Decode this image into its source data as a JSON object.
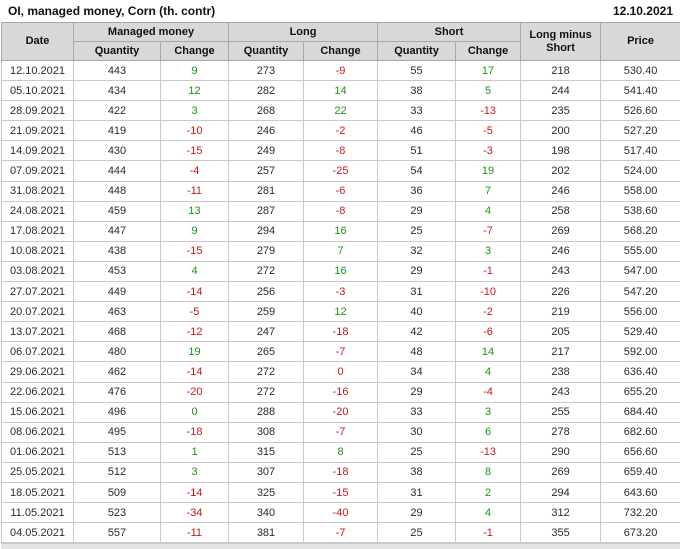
{
  "title": "OI, managed money, Corn (th. contr)",
  "report_date": "12.10.2021",
  "colors": {
    "positive_change": "#169616",
    "negative_change": "#cc1717",
    "header_background": "#d8d8d8",
    "grid_border": "#c9c9c9",
    "text": "#2b2b2b"
  },
  "table": {
    "header": {
      "date": "Date",
      "managed_money": "Managed money",
      "long": "Long",
      "short": "Short",
      "quantity": "Quantity",
      "change": "Change",
      "long_minus_short": "Long minus Short",
      "price": "Price"
    },
    "rows": [
      {
        "date": "12.10.2021",
        "mm_q": "443",
        "mm_c": "9",
        "mm_d": "g",
        "l_q": "273",
        "l_c": "-9",
        "l_d": "r",
        "s_q": "55",
        "s_c": "17",
        "s_d": "g",
        "lms": "218",
        "price": "530.40"
      },
      {
        "date": "05.10.2021",
        "mm_q": "434",
        "mm_c": "12",
        "mm_d": "g",
        "l_q": "282",
        "l_c": "14",
        "l_d": "g",
        "s_q": "38",
        "s_c": "5",
        "s_d": "g",
        "lms": "244",
        "price": "541.40"
      },
      {
        "date": "28.09.2021",
        "mm_q": "422",
        "mm_c": "3",
        "mm_d": "g",
        "l_q": "268",
        "l_c": "22",
        "l_d": "g",
        "s_q": "33",
        "s_c": "-13",
        "s_d": "r",
        "lms": "235",
        "price": "526.60"
      },
      {
        "date": "21.09.2021",
        "mm_q": "419",
        "mm_c": "-10",
        "mm_d": "r",
        "l_q": "246",
        "l_c": "-2",
        "l_d": "r",
        "s_q": "46",
        "s_c": "-5",
        "s_d": "r",
        "lms": "200",
        "price": "527.20"
      },
      {
        "date": "14.09.2021",
        "mm_q": "430",
        "mm_c": "-15",
        "mm_d": "r",
        "l_q": "249",
        "l_c": "-8",
        "l_d": "r",
        "s_q": "51",
        "s_c": "-3",
        "s_d": "r",
        "lms": "198",
        "price": "517.40"
      },
      {
        "date": "07.09.2021",
        "mm_q": "444",
        "mm_c": "-4",
        "mm_d": "r",
        "l_q": "257",
        "l_c": "-25",
        "l_d": "r",
        "s_q": "54",
        "s_c": "19",
        "s_d": "g",
        "lms": "202",
        "price": "524.00"
      },
      {
        "date": "31.08.2021",
        "mm_q": "448",
        "mm_c": "-11",
        "mm_d": "r",
        "l_q": "281",
        "l_c": "-6",
        "l_d": "r",
        "s_q": "36",
        "s_c": "7",
        "s_d": "g",
        "lms": "246",
        "price": "558.00"
      },
      {
        "date": "24.08.2021",
        "mm_q": "459",
        "mm_c": "13",
        "mm_d": "g",
        "l_q": "287",
        "l_c": "-8",
        "l_d": "r",
        "s_q": "29",
        "s_c": "4",
        "s_d": "g",
        "lms": "258",
        "price": "538.60"
      },
      {
        "date": "17.08.2021",
        "mm_q": "447",
        "mm_c": "9",
        "mm_d": "g",
        "l_q": "294",
        "l_c": "16",
        "l_d": "g",
        "s_q": "25",
        "s_c": "-7",
        "s_d": "r",
        "lms": "269",
        "price": "568.20"
      },
      {
        "date": "10.08.2021",
        "mm_q": "438",
        "mm_c": "-15",
        "mm_d": "r",
        "l_q": "279",
        "l_c": "7",
        "l_d": "g",
        "s_q": "32",
        "s_c": "3",
        "s_d": "g",
        "lms": "246",
        "price": "555.00"
      },
      {
        "date": "03.08.2021",
        "mm_q": "453",
        "mm_c": "4",
        "mm_d": "g",
        "l_q": "272",
        "l_c": "16",
        "l_d": "g",
        "s_q": "29",
        "s_c": "-1",
        "s_d": "r",
        "lms": "243",
        "price": "547.00"
      },
      {
        "date": "27.07.2021",
        "mm_q": "449",
        "mm_c": "-14",
        "mm_d": "r",
        "l_q": "256",
        "l_c": "-3",
        "l_d": "r",
        "s_q": "31",
        "s_c": "-10",
        "s_d": "r",
        "lms": "226",
        "price": "547.20"
      },
      {
        "date": "20.07.2021",
        "mm_q": "463",
        "mm_c": "-5",
        "mm_d": "r",
        "l_q": "259",
        "l_c": "12",
        "l_d": "g",
        "s_q": "40",
        "s_c": "-2",
        "s_d": "r",
        "lms": "219",
        "price": "556.00"
      },
      {
        "date": "13.07.2021",
        "mm_q": "468",
        "mm_c": "-12",
        "mm_d": "r",
        "l_q": "247",
        "l_c": "-18",
        "l_d": "r",
        "s_q": "42",
        "s_c": "-6",
        "s_d": "r",
        "lms": "205",
        "price": "529.40"
      },
      {
        "date": "06.07.2021",
        "mm_q": "480",
        "mm_c": "19",
        "mm_d": "g",
        "l_q": "265",
        "l_c": "-7",
        "l_d": "r",
        "s_q": "48",
        "s_c": "14",
        "s_d": "g",
        "lms": "217",
        "price": "592.00"
      },
      {
        "date": "29.06.2021",
        "mm_q": "462",
        "mm_c": "-14",
        "mm_d": "r",
        "l_q": "272",
        "l_c": "0",
        "l_d": "r",
        "s_q": "34",
        "s_c": "4",
        "s_d": "g",
        "lms": "238",
        "price": "636.40"
      },
      {
        "date": "22.06.2021",
        "mm_q": "476",
        "mm_c": "-20",
        "mm_d": "r",
        "l_q": "272",
        "l_c": "-16",
        "l_d": "r",
        "s_q": "29",
        "s_c": "-4",
        "s_d": "r",
        "lms": "243",
        "price": "655.20"
      },
      {
        "date": "15.06.2021",
        "mm_q": "496",
        "mm_c": "0",
        "mm_d": "g",
        "l_q": "288",
        "l_c": "-20",
        "l_d": "r",
        "s_q": "33",
        "s_c": "3",
        "s_d": "g",
        "lms": "255",
        "price": "684.40"
      },
      {
        "date": "08.06.2021",
        "mm_q": "495",
        "mm_c": "-18",
        "mm_d": "r",
        "l_q": "308",
        "l_c": "-7",
        "l_d": "r",
        "s_q": "30",
        "s_c": "6",
        "s_d": "g",
        "lms": "278",
        "price": "682.60"
      },
      {
        "date": "01.06.2021",
        "mm_q": "513",
        "mm_c": "1",
        "mm_d": "g",
        "l_q": "315",
        "l_c": "8",
        "l_d": "g",
        "s_q": "25",
        "s_c": "-13",
        "s_d": "r",
        "lms": "290",
        "price": "656.60"
      },
      {
        "date": "25.05.2021",
        "mm_q": "512",
        "mm_c": "3",
        "mm_d": "g",
        "l_q": "307",
        "l_c": "-18",
        "l_d": "r",
        "s_q": "38",
        "s_c": "8",
        "s_d": "g",
        "lms": "269",
        "price": "659.40"
      },
      {
        "date": "18.05.2021",
        "mm_q": "509",
        "mm_c": "-14",
        "mm_d": "r",
        "l_q": "325",
        "l_c": "-15",
        "l_d": "r",
        "s_q": "31",
        "s_c": "2",
        "s_d": "g",
        "lms": "294",
        "price": "643.60"
      },
      {
        "date": "11.05.2021",
        "mm_q": "523",
        "mm_c": "-34",
        "mm_d": "r",
        "l_q": "340",
        "l_c": "-40",
        "l_d": "r",
        "s_q": "29",
        "s_c": "4",
        "s_d": "g",
        "lms": "312",
        "price": "732.20"
      },
      {
        "date": "04.05.2021",
        "mm_q": "557",
        "mm_c": "-11",
        "mm_d": "r",
        "l_q": "381",
        "l_c": "-7",
        "l_d": "r",
        "s_q": "25",
        "s_c": "-1",
        "s_d": "r",
        "lms": "355",
        "price": "673.20"
      }
    ]
  }
}
